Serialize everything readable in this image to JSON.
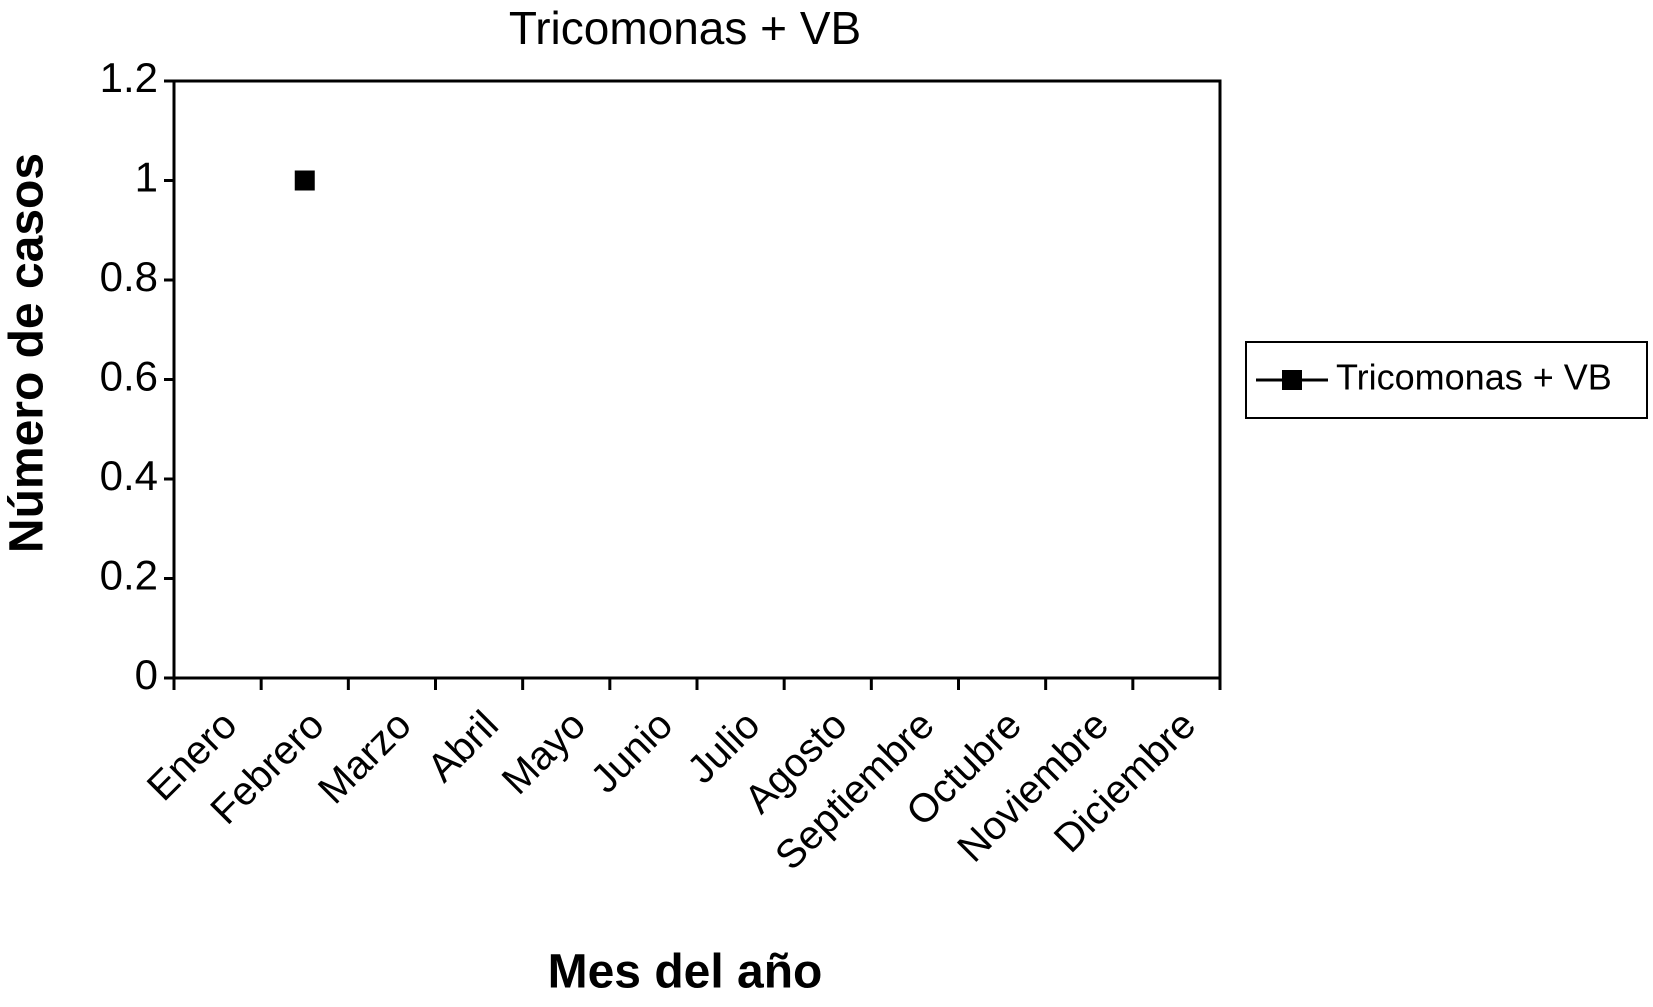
{
  "chart_data": {
    "type": "line",
    "title": "Tricomonas + VB",
    "x_label": "Mes del año",
    "y_label": "Número de casos",
    "categories": [
      "Enero",
      "Febrero",
      "Marzo",
      "Abril",
      "Mayo",
      "Junio",
      "Julio",
      "Agosto",
      "Septiembre",
      "Octubre",
      "Noviembre",
      "Diciembre"
    ],
    "series": [
      {
        "name": "Tricomonas + VB",
        "color": "#000000",
        "marker": "square",
        "values": [
          null,
          1,
          null,
          null,
          null,
          null,
          null,
          null,
          null,
          null,
          null,
          null
        ]
      }
    ],
    "ylim": [
      0,
      1.2
    ],
    "yticks": [
      0,
      0.2,
      0.4,
      0.6,
      0.8,
      1,
      1.2
    ],
    "grid": false,
    "legend": "right"
  }
}
